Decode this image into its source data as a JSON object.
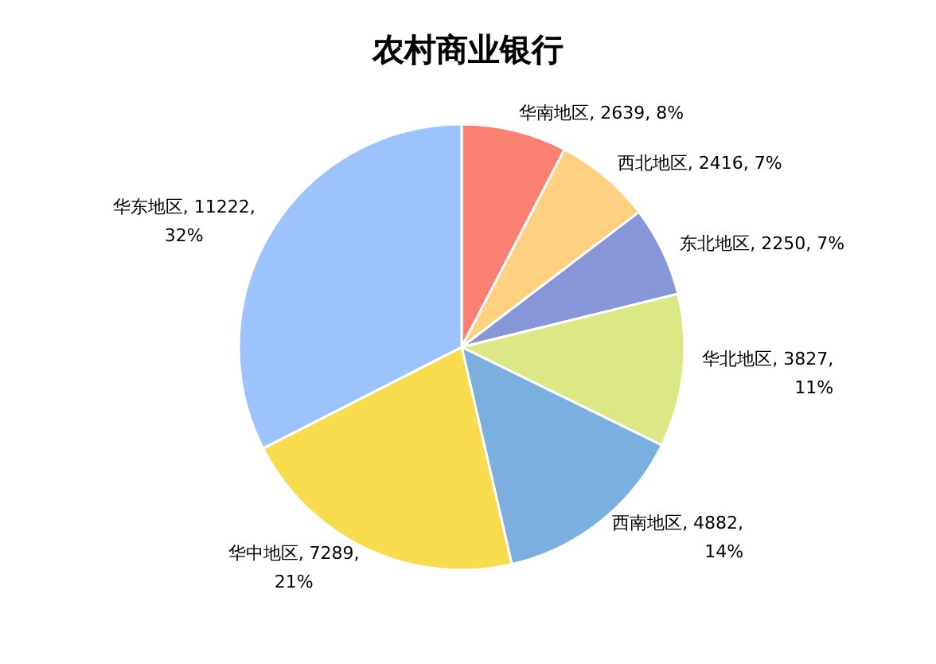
{
  "chart_data": {
    "type": "pie",
    "title": "农村商业银行",
    "categories": [
      "华南地区",
      "西北地区",
      "东北地区",
      "华北地区",
      "西南地区",
      "华中地区",
      "华东地区"
    ],
    "values": [
      2639,
      2416,
      2250,
      3827,
      4882,
      7289,
      11222
    ],
    "value_labels": [
      ", 2639, 8%",
      ", 2416, 7%",
      ", 2250, 7%",
      ", 3827,\n11%",
      ", 4882,\n14%",
      ", 7289,\n21%",
      ", 11222,\n32%"
    ],
    "colors": [
      "#fa8072",
      "#ffd07f",
      "#8796d8",
      "#dce886",
      "#7aafe0",
      "#f9dc4e",
      "#9dc3fe"
    ]
  }
}
